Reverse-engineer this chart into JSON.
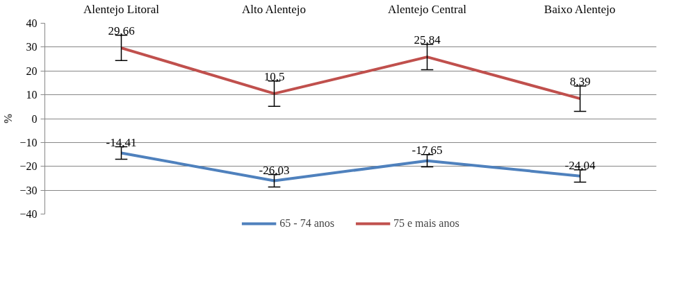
{
  "chart_data": {
    "type": "line",
    "ylabel": "%",
    "categories": [
      "Alentejo Litoral",
      "Alto Alentejo",
      "Alentejo Central",
      "Baixo Alentejo"
    ],
    "series": [
      {
        "name": "65 - 74 anos",
        "color": "#4f81bd",
        "values": [
          -14.41,
          -26.03,
          -17.65,
          -24.04
        ],
        "errors": [
          2.6,
          2.6,
          2.6,
          2.6
        ],
        "value_labels": [
          "-14,41",
          "-26,03",
          "-17,65",
          "-24,04"
        ]
      },
      {
        "name": "75 e mais anos",
        "color": "#c0504d",
        "values": [
          29.66,
          10.5,
          25.84,
          8.39
        ],
        "errors": [
          5.3,
          5.3,
          5.3,
          5.3
        ],
        "value_labels": [
          "29,66",
          "10,5",
          "25,84",
          "8,39"
        ]
      }
    ],
    "ylim": [
      -40,
      40
    ],
    "yticks": [
      -40,
      -30,
      -20,
      -10,
      0,
      10,
      20,
      30,
      40
    ],
    "grid": "y",
    "legend": "bottom",
    "marker": "none",
    "line_style": "solid"
  }
}
